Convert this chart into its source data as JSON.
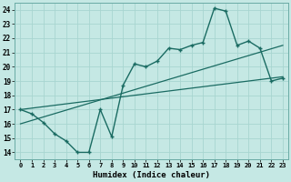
{
  "xlabel": "Humidex (Indice chaleur)",
  "xlim": [
    -0.5,
    23.5
  ],
  "ylim": [
    13.5,
    24.5
  ],
  "yticks": [
    14,
    15,
    16,
    17,
    18,
    19,
    20,
    21,
    22,
    23,
    24
  ],
  "xticks": [
    0,
    1,
    2,
    3,
    4,
    5,
    6,
    7,
    8,
    9,
    10,
    11,
    12,
    13,
    14,
    15,
    16,
    17,
    18,
    19,
    20,
    21,
    22,
    23
  ],
  "background_color": "#c5e8e4",
  "grid_color": "#a8d5d0",
  "line_color": "#1a6b62",
  "line1_x": [
    0,
    1,
    2,
    3,
    4,
    5,
    6,
    7,
    8,
    9,
    10,
    11,
    12,
    13,
    14,
    15,
    16,
    17,
    18,
    19,
    20,
    21,
    22,
    23
  ],
  "line1_y": [
    17.0,
    16.7,
    16.1,
    15.3,
    14.8,
    14.0,
    14.0,
    17.0,
    15.1,
    18.7,
    20.2,
    20.0,
    20.4,
    21.3,
    21.2,
    21.5,
    21.7,
    24.1,
    23.9,
    21.5,
    21.8,
    21.3,
    19.0,
    19.2
  ],
  "line2_x": [
    0,
    23
  ],
  "line2_y": [
    16.0,
    21.5
  ],
  "line3_x": [
    0,
    23
  ],
  "line3_y": [
    17.0,
    19.3
  ]
}
